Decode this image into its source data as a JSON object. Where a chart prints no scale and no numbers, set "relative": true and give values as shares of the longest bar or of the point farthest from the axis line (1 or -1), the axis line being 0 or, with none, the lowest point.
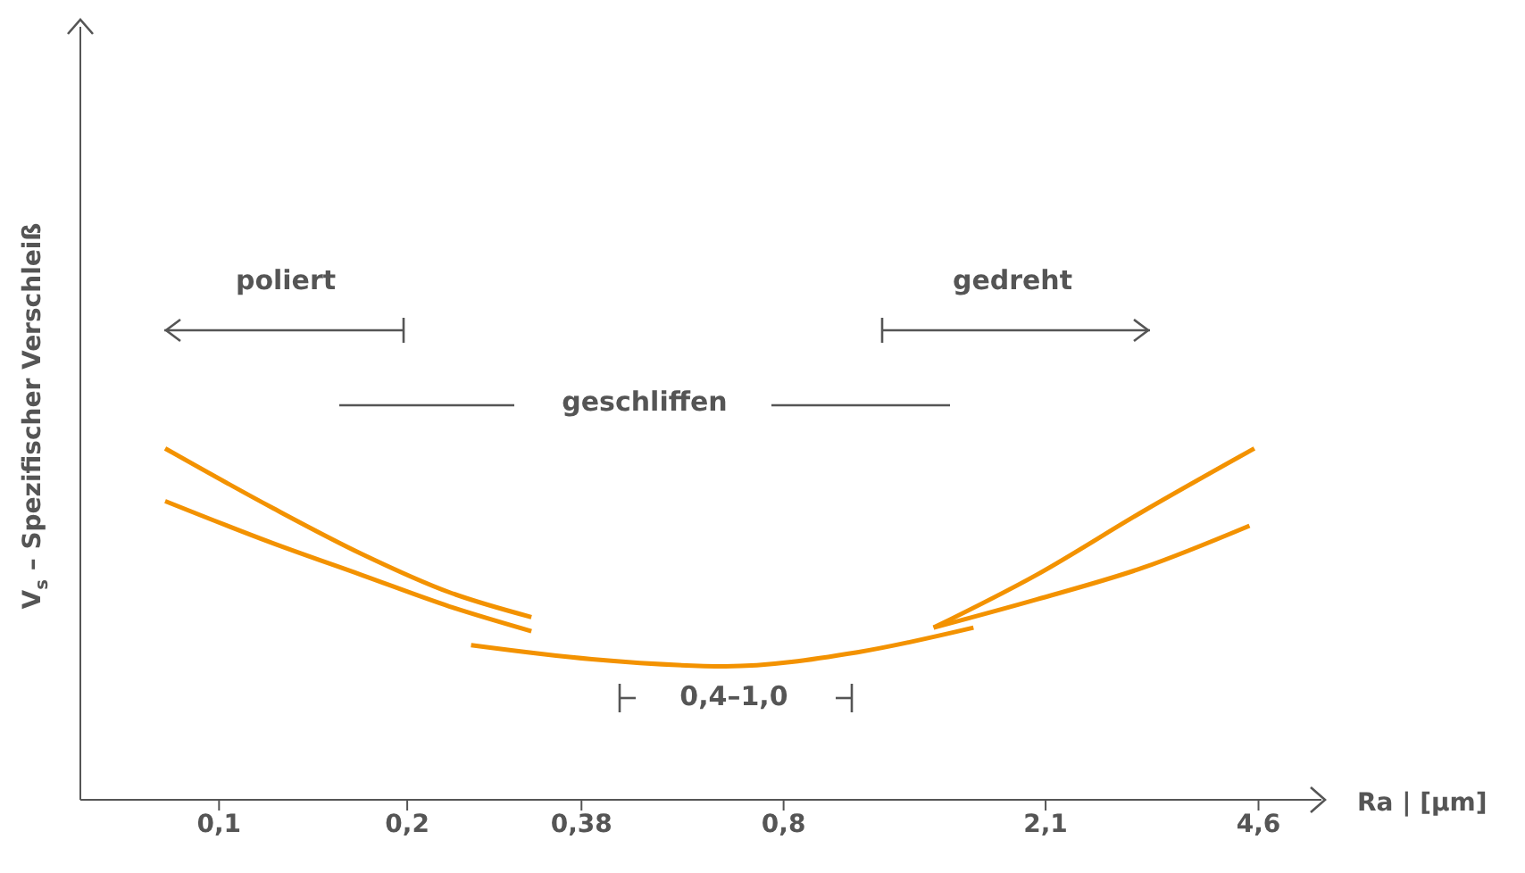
{
  "chart_data": {
    "type": "line",
    "relative": true,
    "xlabel": "Ra | [µm]",
    "ylabel": "V$_{s}$ – Spezifischer Verschleiß",
    "log": "x",
    "xlim": [
      0.06,
      5.8
    ],
    "xticks": [
      {
        "value": 0.1,
        "label": "0,1"
      },
      {
        "value": 0.2,
        "label": "0,2"
      },
      {
        "value": 0.38,
        "label": "0,38"
      },
      {
        "value": 0.8,
        "label": "0,8"
      },
      {
        "value": 2.1,
        "label": "2,1"
      },
      {
        "value": 4.6,
        "label": "4,6"
      }
    ],
    "annotations": [
      "poliert",
      "gedreht",
      "geschliffen",
      "0,4–1,0"
    ],
    "series": [
      {
        "color": "#f39200",
        "x": [
          0.082,
          0.122,
          0.169,
          0.234,
          0.316
        ],
        "values": [
          1.0,
          0.83,
          0.7,
          0.59,
          0.52
        ]
      },
      {
        "color": "#f39200",
        "x": [
          0.082,
          0.122,
          0.169,
          0.234,
          0.316
        ],
        "values": [
          0.85,
          0.73,
          0.64,
          0.55,
          0.48
        ]
      },
      {
        "color": "#f39200",
        "x": [
          0.253,
          0.395,
          0.646,
          1.05,
          1.61
        ],
        "values": [
          0.44,
          0.4,
          0.38,
          0.42,
          0.49
        ]
      },
      {
        "color": "#f39200",
        "x": [
          1.39,
          2.03,
          3.0,
          4.45
        ],
        "values": [
          0.49,
          0.57,
          0.66,
          0.78
        ]
      },
      {
        "color": "#f39200",
        "x": [
          1.39,
          2.03,
          3.0,
          4.53
        ],
        "values": [
          0.49,
          0.64,
          0.82,
          1.0
        ]
      }
    ]
  }
}
